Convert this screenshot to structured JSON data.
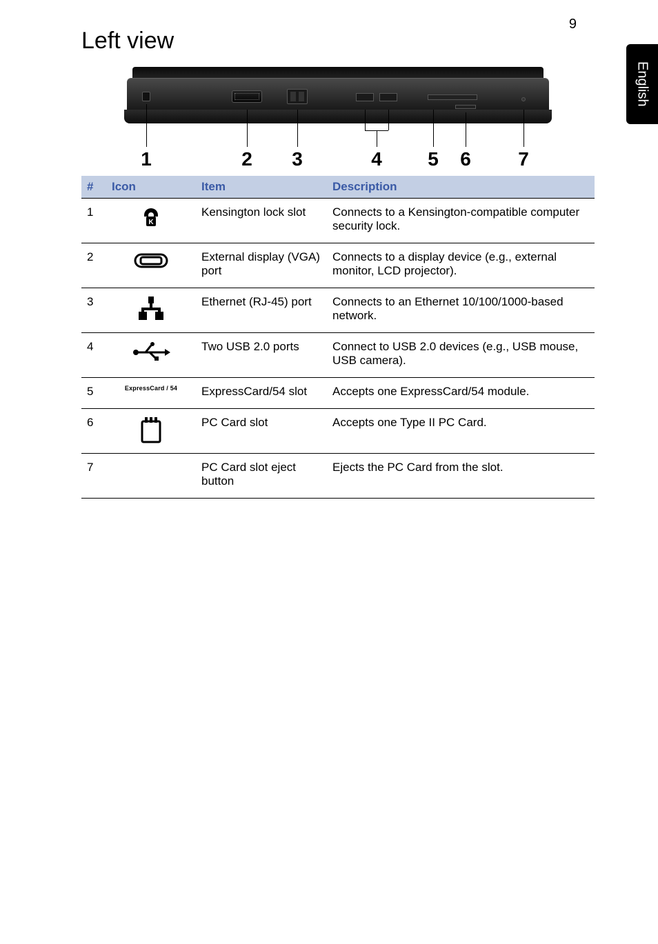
{
  "page_number": "9",
  "side_tab": "English",
  "title": "Left view",
  "callout_numbers": [
    "1",
    "2",
    "3",
    "4",
    "5",
    "6",
    "7"
  ],
  "table": {
    "headers": {
      "num": "#",
      "icon": "Icon",
      "item": "Item",
      "desc": "Description"
    },
    "rows": [
      {
        "num": "1",
        "icon": "kensington",
        "item": "Kensington lock slot",
        "desc": "Connects to a Kensington-compatible computer security lock."
      },
      {
        "num": "2",
        "icon": "vga",
        "item": "External display (VGA) port",
        "desc": "Connects to a display device (e.g., external monitor, LCD projector)."
      },
      {
        "num": "3",
        "icon": "ethernet",
        "item": "Ethernet (RJ-45) port",
        "desc": "Connects to an Ethernet 10/100/1000-based network."
      },
      {
        "num": "4",
        "icon": "usb",
        "item": "Two USB 2.0 ports",
        "desc": "Connect to USB 2.0 devices (e.g., USB mouse, USB camera)."
      },
      {
        "num": "5",
        "icon": "expresscard",
        "icon_label": "ExpressCard / 54",
        "item": "ExpressCard/54 slot",
        "desc": "Accepts one ExpressCard/54 module."
      },
      {
        "num": "6",
        "icon": "pccard",
        "item": "PC Card slot",
        "desc": "Accepts one Type II PC Card."
      },
      {
        "num": "7",
        "icon": "none",
        "item": "PC Card slot eject button",
        "desc": "Ejects the PC Card from the slot."
      }
    ]
  },
  "colors": {
    "header_bg": "#c3cfe4",
    "header_text": "#3a5aa6",
    "rule": "#000000"
  }
}
